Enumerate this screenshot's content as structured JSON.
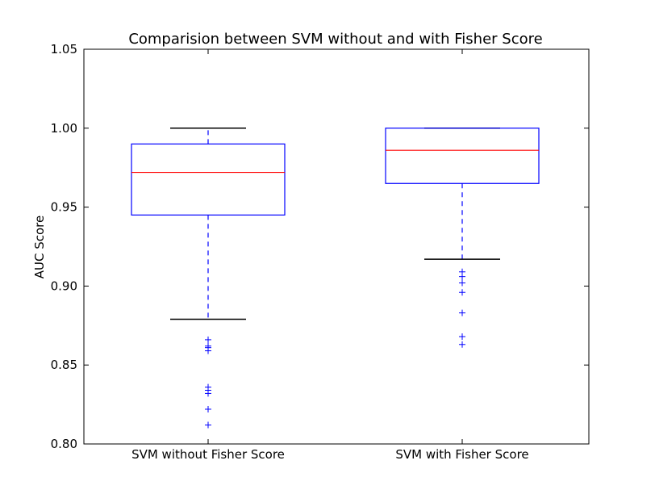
{
  "chart_data": {
    "type": "box",
    "title": "Comparision between SVM without and with Fisher Score",
    "xlabel": "",
    "ylabel": "AUC Score",
    "ylim": [
      0.8,
      1.05
    ],
    "yticks": [
      0.8,
      0.85,
      0.9,
      0.95,
      1.0,
      1.05
    ],
    "ytick_labels": [
      "0.80",
      "0.85",
      "0.90",
      "0.95",
      "1.00",
      "1.05"
    ],
    "categories": [
      "SVM without Fisher Score",
      "SVM with Fisher Score"
    ],
    "grid": false,
    "legend": "none",
    "boxes": [
      {
        "category": "SVM without Fisher Score",
        "whisker_low": 0.879,
        "q1": 0.945,
        "median": 0.972,
        "q3": 0.99,
        "whisker_high": 1.0,
        "outliers": [
          0.866,
          0.862,
          0.861,
          0.859,
          0.836,
          0.834,
          0.832,
          0.822,
          0.812
        ]
      },
      {
        "category": "SVM with Fisher Score",
        "whisker_low": 0.917,
        "q1": 0.965,
        "median": 0.986,
        "q3": 1.0,
        "whisker_high": 1.0,
        "outliers": [
          0.909,
          0.906,
          0.902,
          0.896,
          0.883,
          0.868,
          0.863
        ]
      }
    ],
    "colors": {
      "box": "#0000ff",
      "median": "#ff0000",
      "whisker_cap": "#000000",
      "outlier": "#0000ff",
      "axes": "#000000"
    }
  }
}
